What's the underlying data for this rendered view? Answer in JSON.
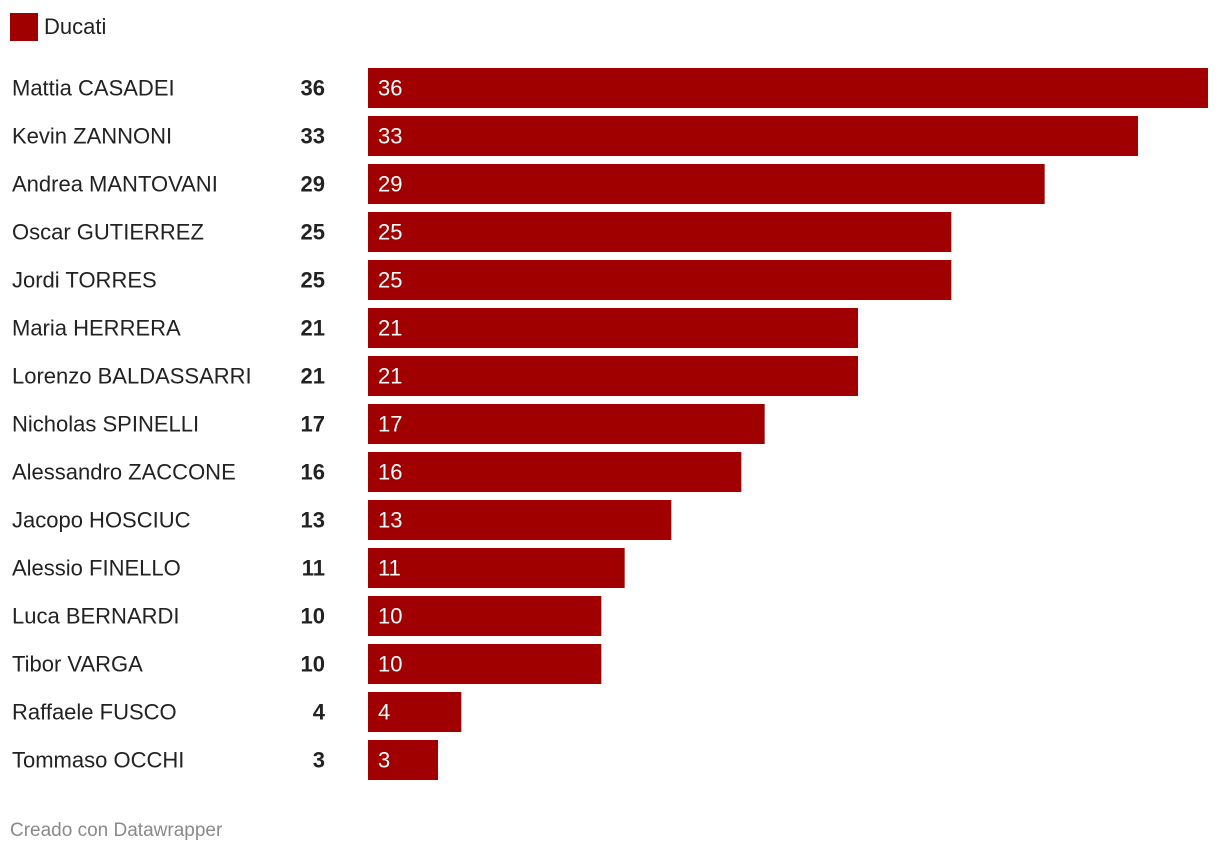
{
  "chart_data": {
    "type": "bar",
    "orientation": "horizontal",
    "legend": [
      {
        "name": "Ducati",
        "color": "#a00000"
      }
    ],
    "categories": [
      "Mattia CASADEI",
      "Kevin ZANNONI",
      "Andrea MANTOVANI",
      "Oscar GUTIERREZ",
      "Jordi TORRES",
      "Maria HERRERA",
      "Lorenzo BALDASSARRI",
      "Nicholas SPINELLI",
      "Alessandro ZACCONE",
      "Jacopo HOSCIUC",
      "Alessio FINELLO",
      "Luca BERNARDI",
      "Tibor VARGA",
      "Raffaele FUSCO",
      "Tommaso OCCHI"
    ],
    "series": [
      {
        "name": "Ducati",
        "color": "#a00000",
        "values": [
          36,
          33,
          29,
          25,
          25,
          21,
          21,
          17,
          16,
          13,
          11,
          10,
          10,
          4,
          3
        ]
      }
    ],
    "totals": [
      36,
      33,
      29,
      25,
      25,
      21,
      21,
      17,
      16,
      13,
      11,
      10,
      10,
      4,
      3
    ],
    "xlim": [
      0,
      36
    ]
  },
  "footer": {
    "credit": "Creado con Datawrapper"
  }
}
